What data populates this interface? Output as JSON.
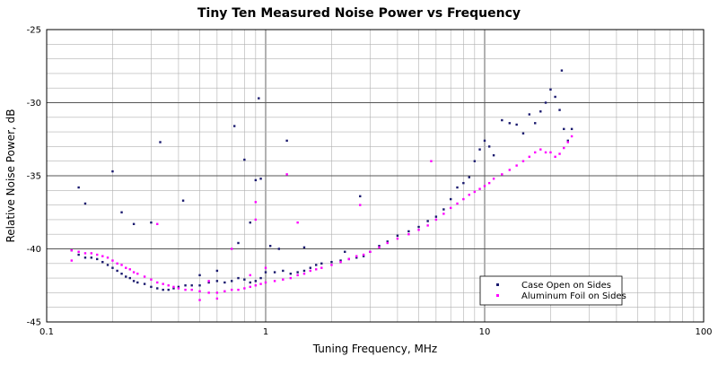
{
  "chart_data": {
    "type": "scatter",
    "title": "Tiny Ten Measured Noise Power vs Frequency",
    "xlabel": "Tuning Frequency, MHz",
    "ylabel": "Relative Noise Power, dB",
    "xscale": "log",
    "xlim": [
      0.1,
      100
    ],
    "ylim": [
      -45,
      -25
    ],
    "x_ticks": [
      0.1,
      1,
      10,
      100
    ],
    "x_tick_labels": [
      "0.1",
      "1",
      "10",
      "100"
    ],
    "y_ticks": [
      -45,
      -40,
      -35,
      -30,
      -25
    ],
    "y_tick_labels": [
      "-45",
      "-40",
      "-35",
      "-30",
      "-25"
    ],
    "grid": true,
    "legend_position": "bottom-right",
    "series_colors": [
      "#1a1a6e",
      "#ff00ff"
    ],
    "series": [
      {
        "name": "Case Open on Sides",
        "points": [
          [
            0.13,
            -40.1
          ],
          [
            0.14,
            -40.4
          ],
          [
            0.15,
            -40.6
          ],
          [
            0.16,
            -40.6
          ],
          [
            0.17,
            -40.7
          ],
          [
            0.18,
            -40.9
          ],
          [
            0.19,
            -41.1
          ],
          [
            0.2,
            -41.3
          ],
          [
            0.21,
            -41.5
          ],
          [
            0.22,
            -41.7
          ],
          [
            0.23,
            -41.9
          ],
          [
            0.24,
            -42.0
          ],
          [
            0.25,
            -42.2
          ],
          [
            0.26,
            -42.3
          ],
          [
            0.28,
            -42.4
          ],
          [
            0.3,
            -42.6
          ],
          [
            0.32,
            -42.7
          ],
          [
            0.34,
            -42.8
          ],
          [
            0.36,
            -42.8
          ],
          [
            0.38,
            -42.7
          ],
          [
            0.4,
            -42.6
          ],
          [
            0.43,
            -42.5
          ],
          [
            0.46,
            -42.5
          ],
          [
            0.5,
            -42.5
          ],
          [
            0.55,
            -42.3
          ],
          [
            0.6,
            -42.2
          ],
          [
            0.65,
            -42.3
          ],
          [
            0.7,
            -42.2
          ],
          [
            0.75,
            -42.0
          ],
          [
            0.8,
            -42.1
          ],
          [
            0.85,
            -42.3
          ],
          [
            0.9,
            -42.2
          ],
          [
            0.95,
            -42.0
          ],
          [
            1.0,
            -41.6
          ],
          [
            1.1,
            -41.6
          ],
          [
            1.2,
            -41.5
          ],
          [
            1.3,
            -41.7
          ],
          [
            1.4,
            -41.6
          ],
          [
            1.5,
            -41.5
          ],
          [
            1.6,
            -41.3
          ],
          [
            1.7,
            -41.1
          ],
          [
            1.8,
            -41.0
          ],
          [
            2.0,
            -40.9
          ],
          [
            2.2,
            -40.8
          ],
          [
            2.4,
            -40.7
          ],
          [
            2.6,
            -40.6
          ],
          [
            2.8,
            -40.5
          ],
          [
            3.0,
            -40.2
          ],
          [
            3.3,
            -39.8
          ],
          [
            3.6,
            -39.5
          ],
          [
            4.0,
            -39.1
          ],
          [
            4.5,
            -38.8
          ],
          [
            5.0,
            -38.5
          ],
          [
            5.5,
            -38.1
          ],
          [
            6.0,
            -37.8
          ],
          [
            6.5,
            -37.3
          ],
          [
            7.0,
            -36.6
          ],
          [
            7.5,
            -35.8
          ],
          [
            8.0,
            -35.5
          ],
          [
            8.5,
            -35.1
          ],
          [
            9.0,
            -34.0
          ],
          [
            9.5,
            -33.2
          ],
          [
            10.0,
            -32.6
          ],
          [
            10.5,
            -33.0
          ],
          [
            11.0,
            -33.6
          ],
          [
            12.0,
            -31.2
          ],
          [
            13.0,
            -31.4
          ],
          [
            14.0,
            -31.5
          ],
          [
            15.0,
            -32.1
          ],
          [
            16.0,
            -30.8
          ],
          [
            17.0,
            -31.4
          ],
          [
            18.0,
            -30.6
          ],
          [
            19.0,
            -30.0
          ],
          [
            20.0,
            -29.1
          ],
          [
            21.0,
            -29.6
          ],
          [
            22.0,
            -30.5
          ],
          [
            23.0,
            -31.8
          ],
          [
            24.0,
            -32.6
          ],
          [
            25.0,
            -31.8
          ],
          [
            0.14,
            -35.8
          ],
          [
            0.15,
            -36.9
          ],
          [
            0.2,
            -34.7
          ],
          [
            0.22,
            -37.5
          ],
          [
            0.25,
            -38.3
          ],
          [
            0.33,
            -32.7
          ],
          [
            0.42,
            -36.7
          ],
          [
            0.3,
            -38.2
          ],
          [
            0.72,
            -31.6
          ],
          [
            0.8,
            -33.9
          ],
          [
            0.93,
            -29.7
          ],
          [
            0.9,
            -35.3
          ],
          [
            0.95,
            -35.2
          ],
          [
            1.25,
            -32.6
          ],
          [
            2.7,
            -36.4
          ],
          [
            22.5,
            -27.8
          ],
          [
            0.75,
            -39.6
          ],
          [
            0.85,
            -38.2
          ],
          [
            1.05,
            -39.8
          ],
          [
            1.15,
            -40.0
          ],
          [
            1.5,
            -39.9
          ],
          [
            2.3,
            -40.2
          ],
          [
            0.5,
            -41.8
          ],
          [
            0.6,
            -41.5
          ]
        ]
      },
      {
        "name": "Aluminum Foil on Sides",
        "points": [
          [
            0.13,
            -40.1
          ],
          [
            0.14,
            -40.2
          ],
          [
            0.15,
            -40.3
          ],
          [
            0.16,
            -40.3
          ],
          [
            0.17,
            -40.4
          ],
          [
            0.18,
            -40.5
          ],
          [
            0.19,
            -40.6
          ],
          [
            0.2,
            -40.8
          ],
          [
            0.21,
            -41.0
          ],
          [
            0.22,
            -41.1
          ],
          [
            0.23,
            -41.3
          ],
          [
            0.24,
            -41.4
          ],
          [
            0.25,
            -41.6
          ],
          [
            0.26,
            -41.7
          ],
          [
            0.28,
            -41.9
          ],
          [
            0.3,
            -42.1
          ],
          [
            0.32,
            -42.3
          ],
          [
            0.34,
            -42.4
          ],
          [
            0.36,
            -42.5
          ],
          [
            0.38,
            -42.6
          ],
          [
            0.4,
            -42.7
          ],
          [
            0.43,
            -42.8
          ],
          [
            0.46,
            -42.8
          ],
          [
            0.5,
            -42.9
          ],
          [
            0.55,
            -43.0
          ],
          [
            0.6,
            -43.0
          ],
          [
            0.65,
            -42.9
          ],
          [
            0.7,
            -42.8
          ],
          [
            0.75,
            -42.8
          ],
          [
            0.8,
            -42.7
          ],
          [
            0.85,
            -42.6
          ],
          [
            0.9,
            -42.5
          ],
          [
            0.95,
            -42.4
          ],
          [
            1.0,
            -42.3
          ],
          [
            1.1,
            -42.2
          ],
          [
            1.2,
            -42.1
          ],
          [
            1.3,
            -42.0
          ],
          [
            1.4,
            -41.8
          ],
          [
            1.5,
            -41.7
          ],
          [
            1.6,
            -41.5
          ],
          [
            1.7,
            -41.4
          ],
          [
            1.8,
            -41.3
          ],
          [
            2.0,
            -41.1
          ],
          [
            2.2,
            -40.9
          ],
          [
            2.4,
            -40.7
          ],
          [
            2.6,
            -40.5
          ],
          [
            2.8,
            -40.4
          ],
          [
            3.0,
            -40.2
          ],
          [
            3.3,
            -39.9
          ],
          [
            3.6,
            -39.6
          ],
          [
            4.0,
            -39.3
          ],
          [
            4.5,
            -39.0
          ],
          [
            5.0,
            -38.7
          ],
          [
            5.5,
            -38.4
          ],
          [
            6.0,
            -38.0
          ],
          [
            6.5,
            -37.6
          ],
          [
            7.0,
            -37.2
          ],
          [
            7.5,
            -36.9
          ],
          [
            8.0,
            -36.6
          ],
          [
            8.5,
            -36.3
          ],
          [
            9.0,
            -36.1
          ],
          [
            9.5,
            -35.9
          ],
          [
            10.0,
            -35.7
          ],
          [
            10.5,
            -35.5
          ],
          [
            11.0,
            -35.2
          ],
          [
            12.0,
            -34.9
          ],
          [
            13.0,
            -34.6
          ],
          [
            14.0,
            -34.3
          ],
          [
            15.0,
            -34.0
          ],
          [
            16.0,
            -33.7
          ],
          [
            17.0,
            -33.4
          ],
          [
            18.0,
            -33.2
          ],
          [
            19.0,
            -33.4
          ],
          [
            20.0,
            -33.4
          ],
          [
            21.0,
            -33.7
          ],
          [
            22.0,
            -33.5
          ],
          [
            23.0,
            -33.1
          ],
          [
            24.0,
            -32.7
          ],
          [
            25.0,
            -32.3
          ],
          [
            0.13,
            -40.8
          ],
          [
            0.32,
            -38.3
          ],
          [
            0.9,
            -36.8
          ],
          [
            0.9,
            -38.0
          ],
          [
            1.25,
            -34.9
          ],
          [
            1.4,
            -38.2
          ],
          [
            2.7,
            -37.0
          ],
          [
            5.7,
            -34.0
          ],
          [
            0.7,
            -40.0
          ],
          [
            0.55,
            -42.2
          ],
          [
            0.85,
            -41.8
          ],
          [
            1.0,
            -41.3
          ],
          [
            0.5,
            -43.5
          ],
          [
            0.6,
            -43.4
          ]
        ]
      }
    ]
  }
}
